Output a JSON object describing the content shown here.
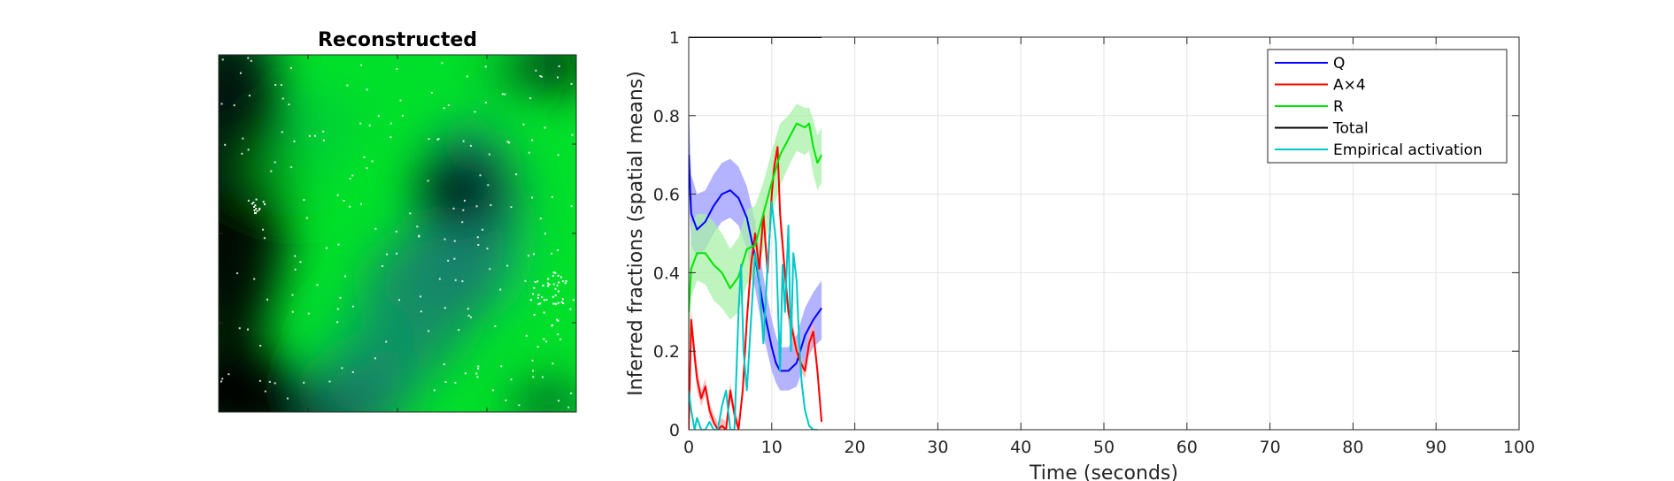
{
  "image_panel": {
    "title": "Reconstructed",
    "colors": [
      "#00e02a",
      "#00d02a",
      "#0a9a66",
      "#16806e",
      "#063a26",
      "#000000",
      "#ffffff"
    ]
  },
  "chart_data": {
    "type": "line",
    "title": "",
    "xlabel": "Time (seconds)",
    "ylabel": "Inferred fractions (spatial means)",
    "xlim": [
      0,
      100
    ],
    "ylim": [
      0,
      1
    ],
    "xticks": [
      0,
      10,
      20,
      30,
      40,
      50,
      60,
      70,
      80,
      90,
      100
    ],
    "yticks": [
      0,
      0.2,
      0.4,
      0.6,
      0.8,
      1
    ],
    "ytick_labels": [
      "0",
      "0.2",
      "0.4",
      "0.6",
      "0.8",
      "1"
    ],
    "grid": true,
    "legend_position": "top-right",
    "series": [
      {
        "name": "Q",
        "color": "#0000ff",
        "band_color": "#9a9aff",
        "x": [
          0,
          0.3,
          1,
          2,
          3,
          4,
          5,
          6,
          7,
          8,
          9,
          10,
          10.5,
          11,
          12,
          13,
          14,
          15,
          16
        ],
        "values": [
          0.7,
          0.55,
          0.51,
          0.53,
          0.57,
          0.6,
          0.61,
          0.59,
          0.54,
          0.44,
          0.31,
          0.21,
          0.17,
          0.15,
          0.15,
          0.17,
          0.24,
          0.28,
          0.31
        ],
        "lower": [
          0.62,
          0.47,
          0.44,
          0.46,
          0.5,
          0.53,
          0.54,
          0.52,
          0.46,
          0.36,
          0.24,
          0.15,
          0.12,
          0.1,
          0.1,
          0.11,
          0.17,
          0.21,
          0.23
        ],
        "upper": [
          0.84,
          0.65,
          0.6,
          0.61,
          0.65,
          0.68,
          0.69,
          0.67,
          0.62,
          0.53,
          0.39,
          0.28,
          0.24,
          0.21,
          0.21,
          0.24,
          0.31,
          0.35,
          0.38
        ]
      },
      {
        "name": "A×4",
        "color": "#ff0000",
        "band_color": "#ffaaaa",
        "x": [
          0,
          0.3,
          0.7,
          1,
          1.5,
          2,
          2.5,
          3,
          3.5,
          4,
          4.5,
          5,
          5.5,
          6,
          6.5,
          7,
          7.5,
          8,
          8.5,
          9,
          9.5,
          10,
          10.3,
          10.7,
          11,
          11.5,
          12,
          12.5,
          13,
          13.5,
          14,
          14.5,
          15,
          15.5,
          16
        ],
        "values": [
          0,
          0.28,
          0.19,
          0.13,
          0.08,
          0.11,
          0.05,
          0.02,
          0,
          0.01,
          0,
          0.1,
          0.04,
          0,
          0.1,
          0.28,
          0.42,
          0.5,
          0.41,
          0.55,
          0.4,
          0.6,
          0.67,
          0.72,
          0.55,
          0.42,
          0.3,
          0.25,
          0.2,
          0.17,
          0.15,
          0.22,
          0.25,
          0.15,
          0.02
        ],
        "lower": [
          0,
          0.24,
          0.16,
          0.1,
          0.06,
          0.09,
          0.03,
          0.01,
          0,
          0,
          0,
          0.08,
          0.02,
          0,
          0.08,
          0.25,
          0.39,
          0.46,
          0.38,
          0.51,
          0.37,
          0.56,
          0.63,
          0.68,
          0.51,
          0.39,
          0.27,
          0.22,
          0.18,
          0.15,
          0.13,
          0.19,
          0.22,
          0.13,
          0.01
        ],
        "upper": [
          0.02,
          0.31,
          0.22,
          0.16,
          0.1,
          0.13,
          0.07,
          0.04,
          0.02,
          0.03,
          0.02,
          0.12,
          0.06,
          0.02,
          0.12,
          0.31,
          0.45,
          0.54,
          0.44,
          0.59,
          0.43,
          0.64,
          0.71,
          0.74,
          0.59,
          0.45,
          0.33,
          0.28,
          0.22,
          0.19,
          0.17,
          0.25,
          0.28,
          0.17,
          0.03
        ]
      },
      {
        "name": "R",
        "color": "#00e600",
        "band_color": "#a8f0a8",
        "x": [
          0,
          0.3,
          1,
          2,
          3,
          4,
          5,
          6,
          7,
          8,
          9,
          10,
          11,
          12,
          13,
          14,
          14.5,
          15,
          15.5,
          16
        ],
        "values": [
          0.3,
          0.41,
          0.45,
          0.45,
          0.42,
          0.4,
          0.36,
          0.39,
          0.46,
          0.47,
          0.55,
          0.63,
          0.7,
          0.74,
          0.78,
          0.77,
          0.78,
          0.72,
          0.68,
          0.7
        ],
        "lower": [
          0.18,
          0.34,
          0.38,
          0.37,
          0.33,
          0.31,
          0.28,
          0.3,
          0.37,
          0.39,
          0.46,
          0.55,
          0.62,
          0.67,
          0.71,
          0.7,
          0.71,
          0.65,
          0.61,
          0.63
        ],
        "upper": [
          0.35,
          0.52,
          0.55,
          0.55,
          0.53,
          0.5,
          0.46,
          0.49,
          0.56,
          0.57,
          0.63,
          0.71,
          0.78,
          0.8,
          0.83,
          0.82,
          0.82,
          0.79,
          0.75,
          0.77
        ]
      },
      {
        "name": "Total",
        "color": "#000000",
        "x": [
          0,
          16
        ],
        "values": [
          1,
          1
        ]
      },
      {
        "name": "Empirical activation",
        "color": "#00c8c8",
        "x": [
          0,
          0.3,
          0.7,
          1,
          1.5,
          2,
          2.5,
          3,
          3.5,
          4,
          4.5,
          5,
          5.5,
          6,
          6.3,
          6.6,
          7,
          7.5,
          8,
          8.5,
          9,
          9.5,
          10,
          10.5,
          11,
          11.3,
          11.6,
          12,
          12.3,
          12.6,
          13,
          13.3,
          13.6,
          14,
          14.5,
          15,
          15.5
        ],
        "values": [
          0.1,
          0.05,
          0,
          0.03,
          0,
          0,
          0.02,
          0,
          0,
          0.06,
          0.1,
          0,
          0,
          0.3,
          0.42,
          0.2,
          0.1,
          0.28,
          0.45,
          0.38,
          0.22,
          0.42,
          0.58,
          0.48,
          0.15,
          0.42,
          0.3,
          0.52,
          0.2,
          0.45,
          0.38,
          0.22,
          0.12,
          0.05,
          0.01,
          0,
          0
        ]
      }
    ]
  }
}
